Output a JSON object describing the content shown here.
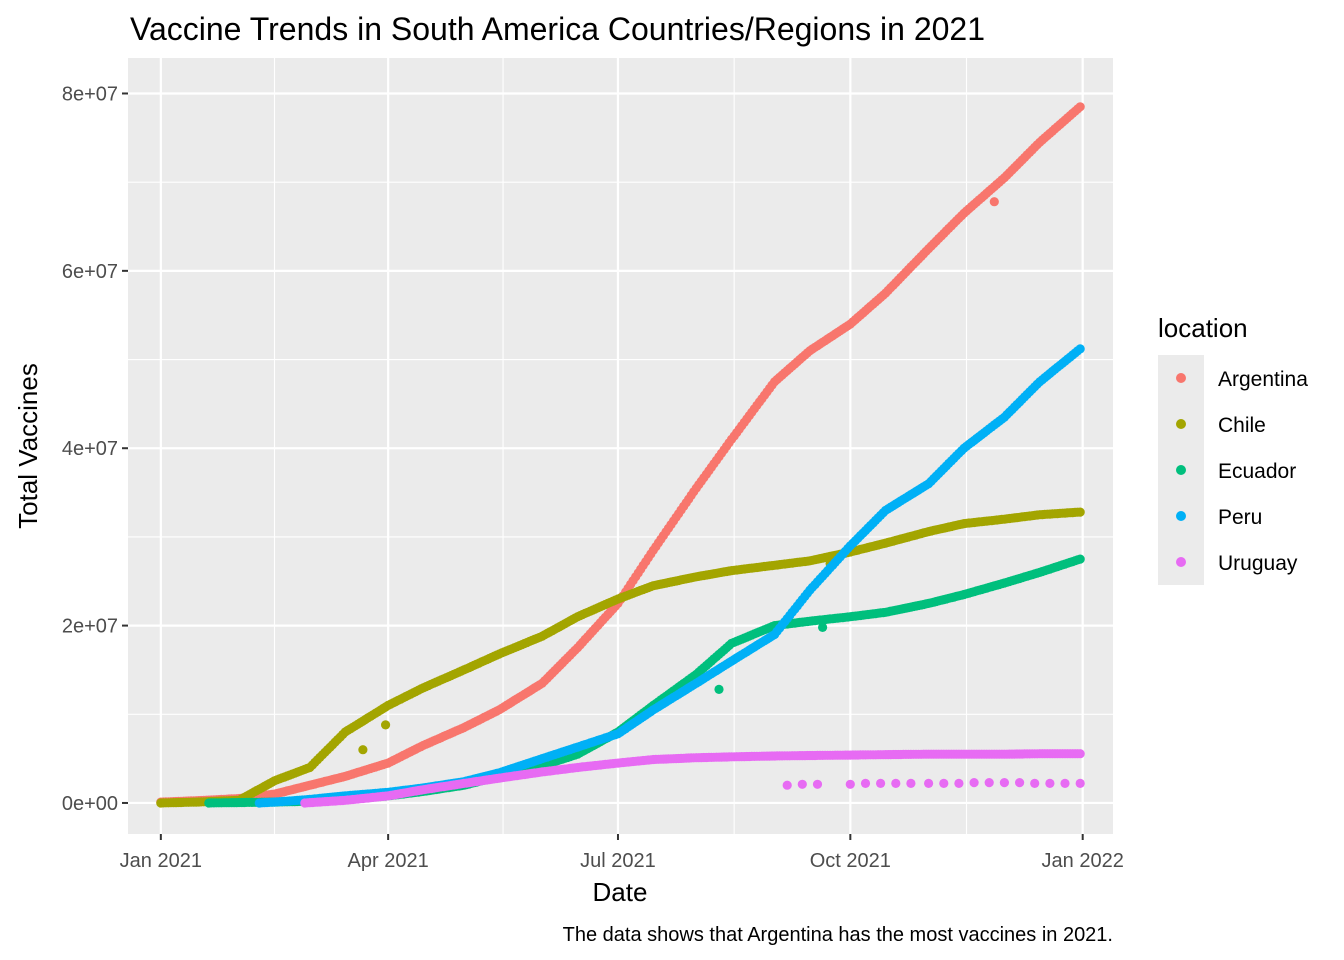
{
  "chart_data": {
    "type": "scatter",
    "title": "Vaccine Trends in South America Countries/Regions in 2021",
    "xlabel": "Date",
    "ylabel": "Total Vaccines",
    "caption": "The data shows that Argentina has the most vaccines in 2021.",
    "legend_title": "location",
    "legend_position": "right",
    "grid": true,
    "x_type": "date",
    "xlim": [
      "2020-12-19",
      "2022-01-13"
    ],
    "ylim": [
      -3500000,
      84000000
    ],
    "x_ticks": [
      {
        "date": "2021-01-01",
        "label": "Jan 2021"
      },
      {
        "date": "2021-04-01",
        "label": "Apr 2021"
      },
      {
        "date": "2021-07-01",
        "label": "Jul 2021"
      },
      {
        "date": "2021-10-01",
        "label": "Oct 2021"
      },
      {
        "date": "2022-01-01",
        "label": "Jan 2022"
      }
    ],
    "y_ticks": [
      {
        "value": 0,
        "label": "0e+00"
      },
      {
        "value": 20000000,
        "label": "2e+07"
      },
      {
        "value": 40000000,
        "label": "4e+07"
      },
      {
        "value": 60000000,
        "label": "6e+07"
      },
      {
        "value": 80000000,
        "label": "8e+07"
      }
    ],
    "series": [
      {
        "name": "Argentina",
        "color": "#F8766D",
        "x": [
          "2021-01-01",
          "2021-01-15",
          "2021-02-01",
          "2021-02-15",
          "2021-03-01",
          "2021-03-15",
          "2021-04-01",
          "2021-04-15",
          "2021-05-01",
          "2021-05-15",
          "2021-06-01",
          "2021-06-15",
          "2021-07-01",
          "2021-07-15",
          "2021-08-01",
          "2021-08-15",
          "2021-09-01",
          "2021-09-15",
          "2021-10-01",
          "2021-10-15",
          "2021-11-01",
          "2021-11-15",
          "2021-12-01",
          "2021-12-15",
          "2021-12-31"
        ],
        "y": [
          100000,
          250000,
          500000,
          1000000,
          2000000,
          3000000,
          4500000,
          6500000,
          8500000,
          10500000,
          13500000,
          17500000,
          22500000,
          28500000,
          35500000,
          41000000,
          47500000,
          51000000,
          54000000,
          57500000,
          62500000,
          66500000,
          70500000,
          74500000,
          78500000
        ],
        "outliers": [
          {
            "x": "2021-11-27",
            "y": 67800000
          }
        ]
      },
      {
        "name": "Chile",
        "color": "#A3A500",
        "x": [
          "2021-01-01",
          "2021-01-15",
          "2021-02-01",
          "2021-02-15",
          "2021-03-01",
          "2021-03-15",
          "2021-04-01",
          "2021-04-15",
          "2021-05-01",
          "2021-05-15",
          "2021-06-01",
          "2021-06-15",
          "2021-07-01",
          "2021-07-15",
          "2021-08-01",
          "2021-08-15",
          "2021-09-01",
          "2021-09-15",
          "2021-10-01",
          "2021-10-15",
          "2021-11-01",
          "2021-11-15",
          "2021-12-01",
          "2021-12-15",
          "2021-12-31"
        ],
        "y": [
          0,
          100000,
          300000,
          2500000,
          4000000,
          8000000,
          11000000,
          13000000,
          15000000,
          16800000,
          18800000,
          21000000,
          23000000,
          24500000,
          25500000,
          26200000,
          26800000,
          27300000,
          28300000,
          29300000,
          30600000,
          31500000,
          32000000,
          32500000,
          32800000
        ],
        "outliers": [
          {
            "x": "2021-03-22",
            "y": 6000000
          },
          {
            "x": "2021-03-31",
            "y": 8800000
          },
          {
            "x": "2021-09-23",
            "y": 27000000
          }
        ]
      },
      {
        "name": "Ecuador",
        "color": "#00BF7D",
        "x": [
          "2021-01-20",
          "2021-02-01",
          "2021-02-15",
          "2021-03-01",
          "2021-03-15",
          "2021-04-01",
          "2021-04-15",
          "2021-05-01",
          "2021-05-15",
          "2021-06-01",
          "2021-06-15",
          "2021-07-01",
          "2021-07-15",
          "2021-08-01",
          "2021-08-15",
          "2021-09-01",
          "2021-09-15",
          "2021-10-01",
          "2021-10-15",
          "2021-11-01",
          "2021-11-15",
          "2021-12-01",
          "2021-12-15",
          "2021-12-31"
        ],
        "y": [
          0,
          50000,
          100000,
          200000,
          400000,
          800000,
          1300000,
          2000000,
          3000000,
          4200000,
          5500000,
          8000000,
          11000000,
          14500000,
          18000000,
          20000000,
          20500000,
          21000000,
          21500000,
          22500000,
          23500000,
          24800000,
          26000000,
          27500000
        ],
        "outliers": [
          {
            "x": "2021-08-10",
            "y": 12800000
          },
          {
            "x": "2021-09-20",
            "y": 19800000
          }
        ]
      },
      {
        "name": "Peru",
        "color": "#00B0F6",
        "x": [
          "2021-02-09",
          "2021-02-20",
          "2021-03-01",
          "2021-03-15",
          "2021-04-01",
          "2021-04-15",
          "2021-05-01",
          "2021-05-15",
          "2021-06-01",
          "2021-06-15",
          "2021-07-01",
          "2021-07-15",
          "2021-08-01",
          "2021-08-15",
          "2021-09-01",
          "2021-09-15",
          "2021-10-01",
          "2021-10-15",
          "2021-11-01",
          "2021-11-15",
          "2021-12-01",
          "2021-12-15",
          "2021-12-31"
        ],
        "y": [
          0,
          200000,
          400000,
          800000,
          1200000,
          1700000,
          2400000,
          3400000,
          5000000,
          6300000,
          7800000,
          10500000,
          13500000,
          16000000,
          19000000,
          24000000,
          29000000,
          33000000,
          36000000,
          40000000,
          43500000,
          47500000,
          51200000
        ]
      },
      {
        "name": "Uruguay",
        "color": "#E76BF3",
        "x": [
          "2021-02-27",
          "2021-03-15",
          "2021-04-01",
          "2021-04-15",
          "2021-05-01",
          "2021-05-15",
          "2021-06-01",
          "2021-06-15",
          "2021-07-01",
          "2021-07-15",
          "2021-08-01",
          "2021-08-15",
          "2021-09-01",
          "2021-09-15",
          "2021-10-01",
          "2021-10-15",
          "2021-11-01",
          "2021-11-15",
          "2021-12-01",
          "2021-12-15",
          "2021-12-31"
        ],
        "y": [
          0,
          300000,
          800000,
          1500000,
          2200000,
          2800000,
          3500000,
          4000000,
          4500000,
          4900000,
          5100000,
          5200000,
          5300000,
          5350000,
          5400000,
          5450000,
          5500000,
          5500000,
          5500000,
          5550000,
          5550000
        ],
        "outliers": [
          {
            "x": "2021-09-06",
            "y": 2000000
          },
          {
            "x": "2021-09-12",
            "y": 2100000
          },
          {
            "x": "2021-09-18",
            "y": 2100000
          },
          {
            "x": "2021-10-01",
            "y": 2100000
          },
          {
            "x": "2021-10-07",
            "y": 2200000
          },
          {
            "x": "2021-10-13",
            "y": 2200000
          },
          {
            "x": "2021-10-19",
            "y": 2200000
          },
          {
            "x": "2021-10-25",
            "y": 2200000
          },
          {
            "x": "2021-11-01",
            "y": 2200000
          },
          {
            "x": "2021-11-07",
            "y": 2200000
          },
          {
            "x": "2021-11-13",
            "y": 2200000
          },
          {
            "x": "2021-11-19",
            "y": 2300000
          },
          {
            "x": "2021-11-25",
            "y": 2300000
          },
          {
            "x": "2021-12-01",
            "y": 2300000
          },
          {
            "x": "2021-12-07",
            "y": 2300000
          },
          {
            "x": "2021-12-13",
            "y": 2200000
          },
          {
            "x": "2021-12-19",
            "y": 2200000
          },
          {
            "x": "2021-12-25",
            "y": 2200000
          },
          {
            "x": "2021-12-31",
            "y": 2200000
          }
        ]
      }
    ]
  }
}
